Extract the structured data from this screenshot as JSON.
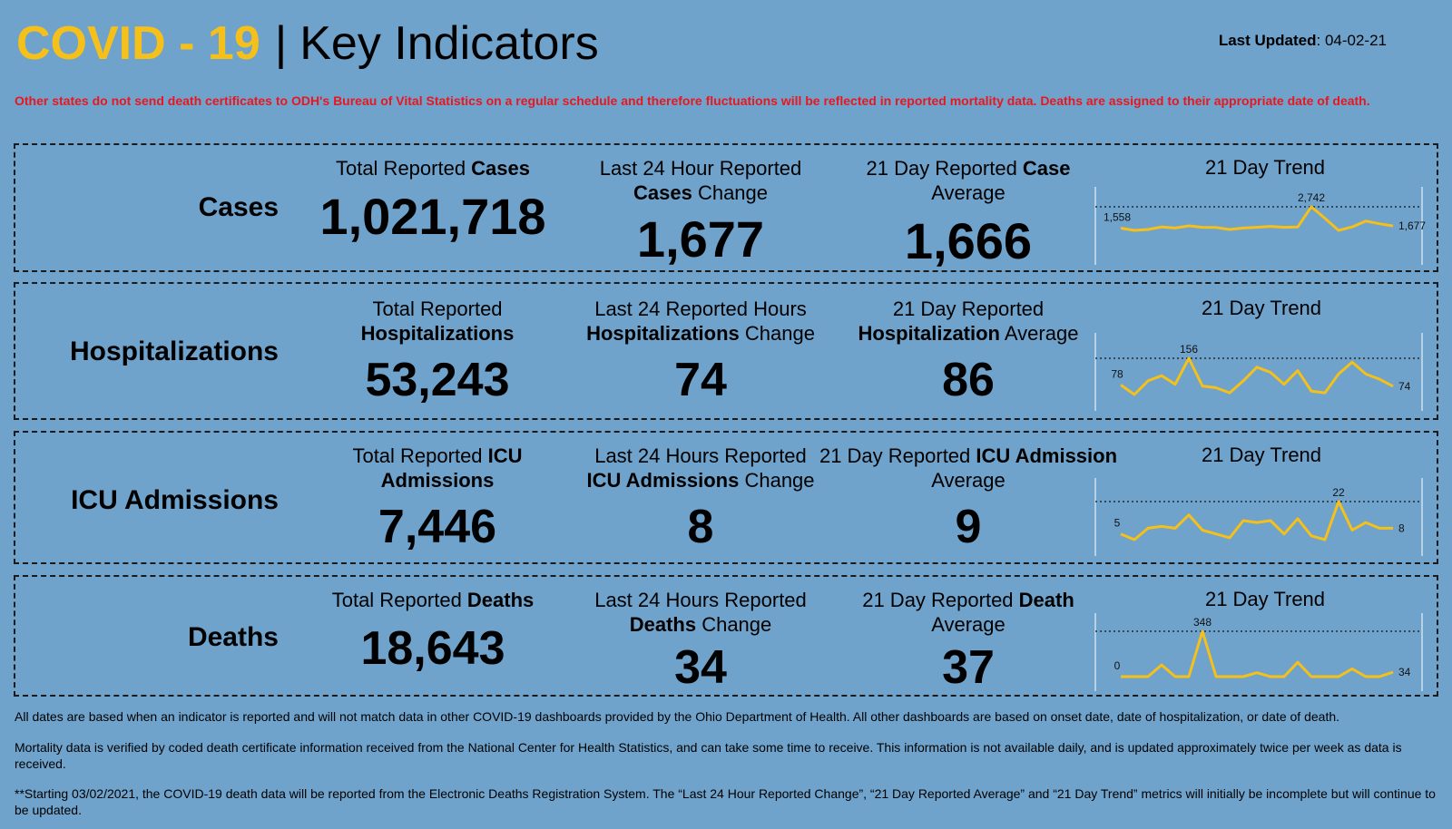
{
  "header": {
    "title_covid": "COVID - 19",
    "title_sep": "|",
    "title_main": "Key Indicators",
    "updated_label": "Last Updated",
    "updated_value": ": 04-02-21"
  },
  "warning": "Other states do not send death certificates to ODH's Bureau of Vital Statistics on a regular schedule and therefore fluctuations will be reflected in reported mortality data. Deaths are assigned to their appropriate date of death.",
  "rows": [
    {
      "label": "Cases",
      "total_pre": "Total Reported ",
      "total_bold": "Cases",
      "total_post": "",
      "total_value": "1,021,718",
      "change_pre": "Last 24 Hour Reported ",
      "change_bold": "Cases",
      "change_post": " Change",
      "change_value": "1,677",
      "avg_pre": "21 Day Reported ",
      "avg_bold": "Case",
      "avg_post": " Average",
      "avg_value": "1,666",
      "trend_title": "21 Day Trend",
      "trend": {
        "start": "1,558",
        "peak": "2,742",
        "end": "1,677",
        "values": [
          1558,
          1430,
          1480,
          1620,
          1560,
          1680,
          1600,
          1590,
          1480,
          1560,
          1600,
          1650,
          1600,
          1620,
          2742,
          2100,
          1430,
          1620,
          1950,
          1800,
          1677
        ]
      }
    },
    {
      "label": "Hospitalizations",
      "total_pre": "Total Reported ",
      "total_bold": "Hospitalizations",
      "total_post": "",
      "total_value": "53,243",
      "change_pre": "Last 24 Reported Hours ",
      "change_bold": "Hospitalizations",
      "change_post": " Change",
      "change_value": "74",
      "avg_pre": "21 Day Reported ",
      "avg_bold": "Hospitalization",
      "avg_post": " Average",
      "avg_value": "86",
      "trend_title": "21 Day Trend",
      "trend": {
        "start": "78",
        "peak": "156",
        "end": "74",
        "values": [
          78,
          50,
          90,
          105,
          80,
          156,
          75,
          70,
          55,
          90,
          130,
          115,
          80,
          120,
          60,
          55,
          110,
          145,
          110,
          95,
          74
        ]
      }
    },
    {
      "label": "ICU Admissions",
      "total_pre": "Total Reported ",
      "total_bold": "ICU",
      "total_post": " Admissions",
      "total_value": "7,446",
      "change_pre": "Last 24 Hours Reported ",
      "change_bold": "ICU Admissions",
      "change_post": " Change",
      "change_value": "8",
      "avg_pre": "21 Day Reported ",
      "avg_bold": "ICU Admission",
      "avg_post": " Average",
      "avg_value": "9",
      "trend_title": "21 Day Trend",
      "trend": {
        "start": "5",
        "peak": "22",
        "end": "8",
        "values": [
          5,
          2,
          8,
          9,
          8,
          15,
          7,
          5,
          3,
          12,
          11,
          12,
          5,
          13,
          4,
          2,
          22,
          7,
          11,
          8,
          8
        ]
      }
    },
    {
      "label": "Deaths",
      "total_pre": "Total Reported ",
      "total_bold": "Deaths",
      "total_post": "",
      "total_value": "18,643",
      "change_pre": "Last 24 Hours Reported ",
      "change_bold": "Deaths",
      "change_post": " Change",
      "change_value": "34",
      "avg_pre": "21 Day Reported ",
      "avg_bold": "Death",
      "avg_post": " Average",
      "avg_value": "37",
      "trend_title": "21 Day Trend",
      "trend": {
        "start": "0",
        "peak": "348",
        "end": "34",
        "values": [
          0,
          0,
          0,
          90,
          0,
          0,
          348,
          0,
          0,
          0,
          30,
          0,
          0,
          110,
          0,
          0,
          0,
          60,
          0,
          0,
          34
        ]
      }
    }
  ],
  "footnotes": [
    "All dates are based when an indicator is reported and will not match data in other COVID-19 dashboards provided by the Ohio Department of Health. All other dashboards are based on onset date, date of hospitalization, or date of death.",
    "Mortality data is verified by coded death certificate information received from the National Center for Health Statistics, and can take some time to receive. This information is not available daily, and is updated approximately twice per week as data is received.",
    "**Starting 03/02/2021, the COVID-19 death data will be reported from the Electronic Deaths Registration System. The “Last 24 Hour Reported Change”, “21 Day Reported Average” and “21 Day Trend” metrics will initially be incomplete but will continue to be updated."
  ],
  "colors": {
    "accent": "#f5c019",
    "warning": "#e8171f",
    "background": "#6fa3cc"
  }
}
